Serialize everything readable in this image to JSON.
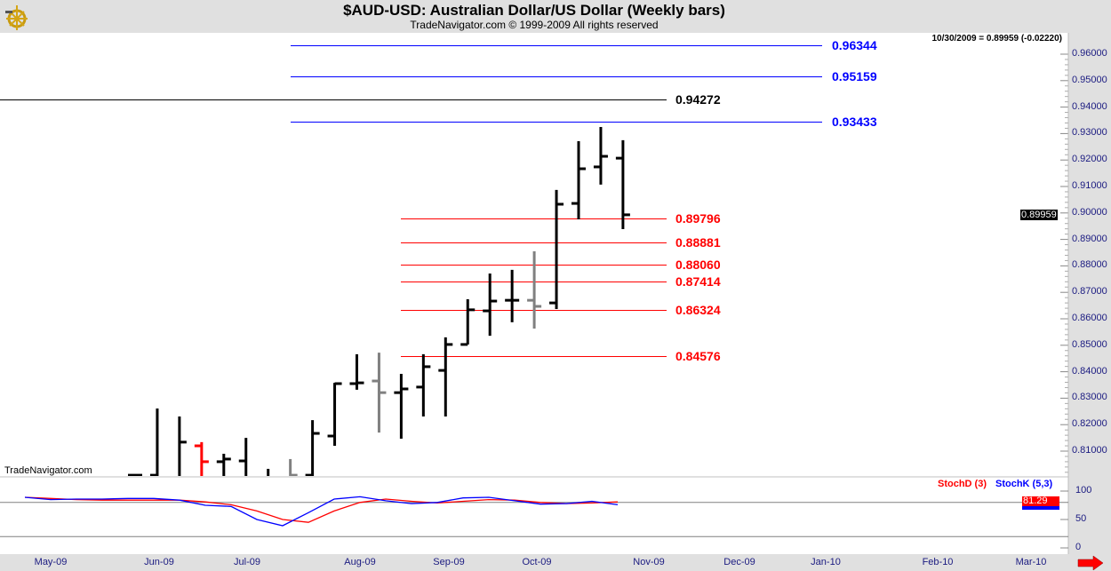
{
  "header": {
    "title": "$AUD-USD:  Australian Dollar/US Dollar  (Weekly bars)",
    "subtitle": "TradeNavigator.com © 1999-2009 All rights reserved",
    "last_quote": "10/30/2009 = 0.89959 (-0.02220)",
    "watermark": "TradeNavigator.com",
    "logo_icon": "ship-wheel-icon"
  },
  "chart_data": [
    {
      "type": "ohlc",
      "ylim": [
        0.8,
        0.97
      ],
      "y_ticks": [
        "0.96000",
        "0.95000",
        "0.94000",
        "0.93000",
        "0.92000",
        "0.91000",
        "0.90000",
        "0.89000",
        "0.88000",
        "0.87000",
        "0.86000",
        "0.85000",
        "0.84000",
        "0.83000",
        "0.82000",
        "0.81000"
      ],
      "current_price_label": "0.89959",
      "bars": [
        {
          "o": 0.8009,
          "h": 0.8012,
          "l": 0.8,
          "c": 0.8009,
          "color": "#000000"
        },
        {
          "o": 0.8009,
          "h": 0.8261,
          "l": 0.8,
          "c": 0.8,
          "color": "#000000"
        },
        {
          "o": 0.8,
          "h": 0.8231,
          "l": 0.8,
          "c": 0.8134,
          "color": "#000000"
        },
        {
          "o": 0.812,
          "h": 0.8134,
          "l": 0.8,
          "c": 0.806,
          "color": "#ff0000"
        },
        {
          "o": 0.806,
          "h": 0.809,
          "l": 0.8,
          "c": 0.807,
          "color": "#000000"
        },
        {
          "o": 0.8063,
          "h": 0.815,
          "l": 0.8,
          "c": 0.8,
          "color": "#000000"
        },
        {
          "o": 0.8,
          "h": 0.8033,
          "l": 0.8,
          "c": 0.8,
          "color": "#000000"
        },
        {
          "o": 0.8,
          "h": 0.807,
          "l": 0.8,
          "c": 0.8009,
          "color": "#808080"
        },
        {
          "o": 0.8009,
          "h": 0.8217,
          "l": 0.8,
          "c": 0.8167,
          "color": "#000000"
        },
        {
          "o": 0.8157,
          "h": 0.8358,
          "l": 0.812,
          "c": 0.8355,
          "color": "#000000"
        },
        {
          "o": 0.8355,
          "h": 0.8466,
          "l": 0.8332,
          "c": 0.8358,
          "color": "#000000"
        },
        {
          "o": 0.8365,
          "h": 0.8472,
          "l": 0.817,
          "c": 0.8321,
          "color": "#808080"
        },
        {
          "o": 0.8321,
          "h": 0.8392,
          "l": 0.8147,
          "c": 0.8335,
          "color": "#000000"
        },
        {
          "o": 0.8342,
          "h": 0.8466,
          "l": 0.8231,
          "c": 0.8419,
          "color": "#000000"
        },
        {
          "o": 0.8405,
          "h": 0.853,
          "l": 0.8231,
          "c": 0.8503,
          "color": "#000000"
        },
        {
          "o": 0.8503,
          "h": 0.8674,
          "l": 0.8503,
          "c": 0.8634,
          "color": "#000000"
        },
        {
          "o": 0.863,
          "h": 0.8771,
          "l": 0.8536,
          "c": 0.8667,
          "color": "#000000"
        },
        {
          "o": 0.867,
          "h": 0.8785,
          "l": 0.8587,
          "c": 0.867,
          "color": "#000000"
        },
        {
          "o": 0.867,
          "h": 0.8855,
          "l": 0.8563,
          "c": 0.8647,
          "color": "#808080"
        },
        {
          "o": 0.866,
          "h": 0.9087,
          "l": 0.8637,
          "c": 0.9033,
          "color": "#000000"
        },
        {
          "o": 0.9036,
          "h": 0.9271,
          "l": 0.8976,
          "c": 0.9167,
          "color": "#000000"
        },
        {
          "o": 0.9174,
          "h": 0.9325,
          "l": 0.9107,
          "c": 0.9214,
          "color": "#000000"
        },
        {
          "o": 0.9207,
          "h": 0.9275,
          "l": 0.8939,
          "c": 0.8993,
          "color": "#000000"
        }
      ],
      "levels": [
        {
          "value": 0.96344,
          "label": "0.96344",
          "color": "#0000ff",
          "group": "upper"
        },
        {
          "value": 0.95159,
          "label": "0.95159",
          "color": "#0000ff",
          "group": "upper"
        },
        {
          "value": 0.94272,
          "label": "0.94272",
          "color": "#000000",
          "group": "black"
        },
        {
          "value": 0.93433,
          "label": "0.93433",
          "color": "#0000ff",
          "group": "upper"
        },
        {
          "value": 0.89796,
          "label": "0.89796",
          "color": "#ff0000",
          "group": "lower"
        },
        {
          "value": 0.88881,
          "label": "0.88881",
          "color": "#ff0000",
          "group": "lower"
        },
        {
          "value": 0.8806,
          "label": "0.88060",
          "color": "#ff0000",
          "group": "lower"
        },
        {
          "value": 0.87414,
          "label": "0.87414",
          "color": "#ff0000",
          "group": "lower"
        },
        {
          "value": 0.86324,
          "label": "0.86324",
          "color": "#ff0000",
          "group": "lower"
        },
        {
          "value": 0.84576,
          "label": "0.84576",
          "color": "#ff0000",
          "group": "lower"
        }
      ]
    },
    {
      "type": "line",
      "ylim": [
        0,
        100
      ],
      "y_ticks": [
        "100",
        "50",
        "0"
      ],
      "reference_lines": [
        80,
        20
      ],
      "value_label": "81.29",
      "series": [
        {
          "name": "StochD (3)",
          "color": "#ff0000",
          "values": [
            89,
            87,
            85,
            84,
            84,
            84,
            84,
            81,
            76,
            65,
            50,
            45,
            65,
            80,
            86,
            82,
            79,
            82,
            85,
            84,
            80,
            78,
            79,
            81
          ]
        },
        {
          "name": "StochK (5,3)",
          "color": "#0000ff",
          "values": [
            89,
            85,
            86,
            86,
            87,
            87,
            84,
            75,
            73,
            50,
            39,
            62,
            86,
            90,
            83,
            78,
            80,
            88,
            89,
            83,
            77,
            78,
            82,
            76
          ]
        }
      ]
    }
  ],
  "x_axis": {
    "labels": [
      "May-09",
      "Jun-09",
      "Jul-09",
      "Aug-09",
      "Sep-09",
      "Oct-09",
      "Nov-09",
      "Dec-09",
      "Jan-10",
      "Feb-10",
      "Mar-10"
    ],
    "scroll_icon": "red-right-arrow-icon"
  }
}
